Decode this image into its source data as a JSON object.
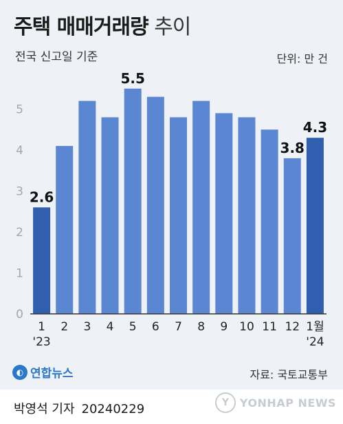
{
  "header": {
    "title_strong": "주택 매매거래량",
    "title_light": "추이",
    "subtitle": "전국 신고일 기준",
    "unit": "단위: 만 건"
  },
  "footer": {
    "logo_text": "연합뉴스",
    "source": "자료: 국토교통부",
    "reporter": "박영석 기자",
    "date": "20240229",
    "watermark": "YONHAP NEWS"
  },
  "colors": {
    "bar": "#5b86d2",
    "bar_highlight": "#2f5fae",
    "axis": "#333333",
    "tick_text": "#a0a7b3",
    "background": "#eef1f6"
  },
  "chart_data": {
    "type": "bar",
    "categories": [
      "1",
      "2",
      "3",
      "4",
      "5",
      "6",
      "7",
      "8",
      "9",
      "10",
      "11",
      "12",
      "1월"
    ],
    "category_sublabels": [
      "'23",
      "",
      "",
      "",
      "",
      "",
      "",
      "",
      "",
      "",
      "",
      "",
      "'24"
    ],
    "values": [
      2.6,
      4.1,
      5.2,
      4.8,
      5.5,
      5.3,
      4.8,
      5.2,
      4.9,
      4.8,
      4.5,
      3.8,
      4.3
    ],
    "highlighted": [
      true,
      false,
      false,
      false,
      false,
      false,
      false,
      false,
      false,
      false,
      false,
      false,
      true
    ],
    "data_labels": [
      "2.6",
      "",
      "",
      "",
      "5.5",
      "",
      "",
      "",
      "",
      "",
      "",
      "3.8",
      "4.3"
    ],
    "yticks": [
      "0",
      "1",
      "2",
      "3",
      "4",
      "5"
    ],
    "ylim": [
      0,
      5.6
    ],
    "grid": false
  }
}
